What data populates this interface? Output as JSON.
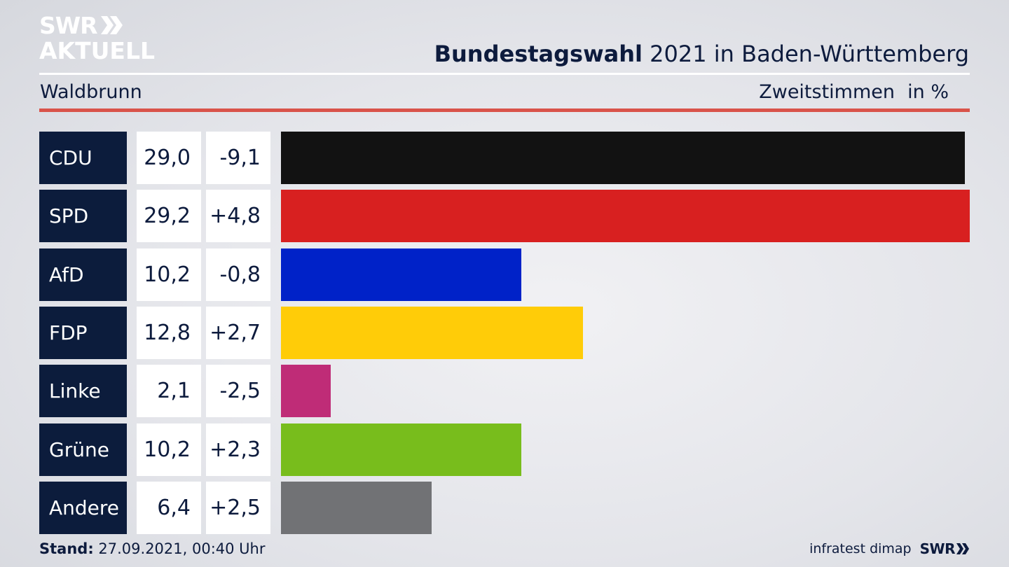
{
  "logo": {
    "line1": "SWR",
    "line2": "AKTUELL",
    "chevron_icon": "double-chevron-right-icon"
  },
  "header": {
    "title_bold": "Bundestagswahl",
    "title_rest": " 2021 in Baden-Württemberg",
    "subtitle": "Waldbrunn",
    "unit_label": "Zweitstimmen",
    "unit_suffix": "in %"
  },
  "colors": {
    "rule": "#d9534a",
    "party_box": "#0c1c3c"
  },
  "chart_data": {
    "type": "bar",
    "orientation": "horizontal",
    "title": "Bundestagswahl 2021 in Baden-Württemberg",
    "subtitle": "Waldbrunn",
    "categories": [
      "CDU",
      "SPD",
      "AfD",
      "FDP",
      "Linke",
      "Grüne",
      "Andere"
    ],
    "values": [
      29.0,
      29.2,
      10.2,
      12.8,
      2.1,
      10.2,
      6.4
    ],
    "value_labels": [
      "29,0",
      "29,2",
      "10,2",
      "12,8",
      "2,1",
      "10,2",
      "6,4"
    ],
    "diff_values": [
      -9.1,
      4.8,
      -0.8,
      2.7,
      -2.5,
      2.3,
      2.5
    ],
    "diff_labels": [
      "-9,1",
      "+4,8",
      "-0,8",
      "+2,7",
      "-2,5",
      "+2,3",
      "+2,5"
    ],
    "colors": [
      "#121212",
      "#d82020",
      "#0022c8",
      "#ffcc08",
      "#bf2c77",
      "#78bd1c",
      "#717275"
    ],
    "xlim": [
      0,
      29.2
    ],
    "grid": false,
    "legend": "none"
  },
  "footer": {
    "stand_label": "Stand:",
    "stand_value": " 27.09.2021, 00:40 Uhr",
    "source": "infratest dimap",
    "brand": "SWR",
    "brand_icon": "double-chevron-right-icon"
  }
}
